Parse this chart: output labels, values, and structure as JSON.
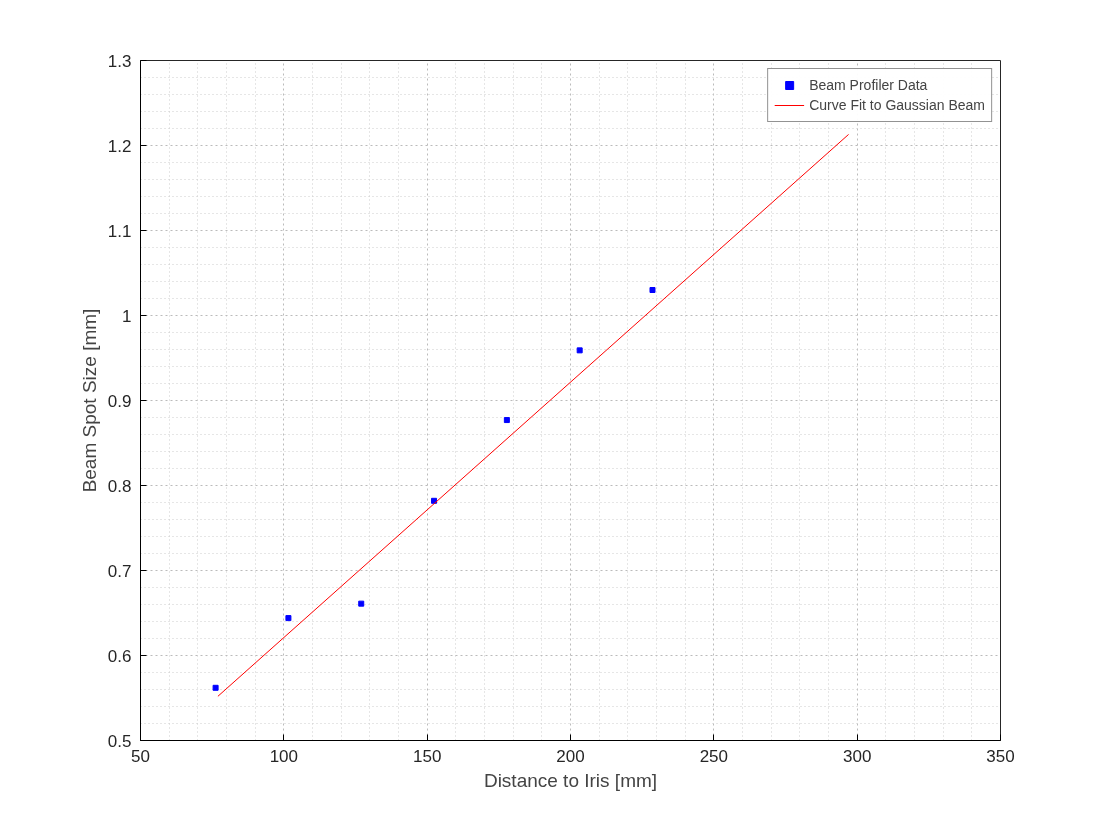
{
  "chart_data": {
    "type": "scatter",
    "xlabel": "Distance to Iris [mm]",
    "ylabel": "Beam Spot Size [mm]",
    "xlim": [
      50,
      350
    ],
    "xticks": [
      50,
      100,
      150,
      200,
      250,
      300,
      350
    ],
    "ylim": [
      0.5,
      1.3
    ],
    "yticks": [
      0.5,
      0.6,
      0.7,
      0.8,
      0.9,
      1,
      1.1,
      1.2,
      1.3
    ],
    "grid": true,
    "legend": "top right",
    "series": [
      {
        "name": "Beam Profiler Data",
        "marker": "square",
        "color": "#0000ff",
        "x": [
          76.2,
          101.6,
          127,
          152.4,
          177.8,
          203.2,
          228.6
        ],
        "values": [
          0.562,
          0.644,
          0.661,
          0.782,
          0.877,
          0.959,
          1.03
        ]
      },
      {
        "name": "Curve Fit to Gaussian Beam",
        "type": "line",
        "marker": "none",
        "color": "#ff0000",
        "x": [
          77,
          297
        ],
        "values": [
          0.552,
          1.213
        ]
      }
    ]
  }
}
